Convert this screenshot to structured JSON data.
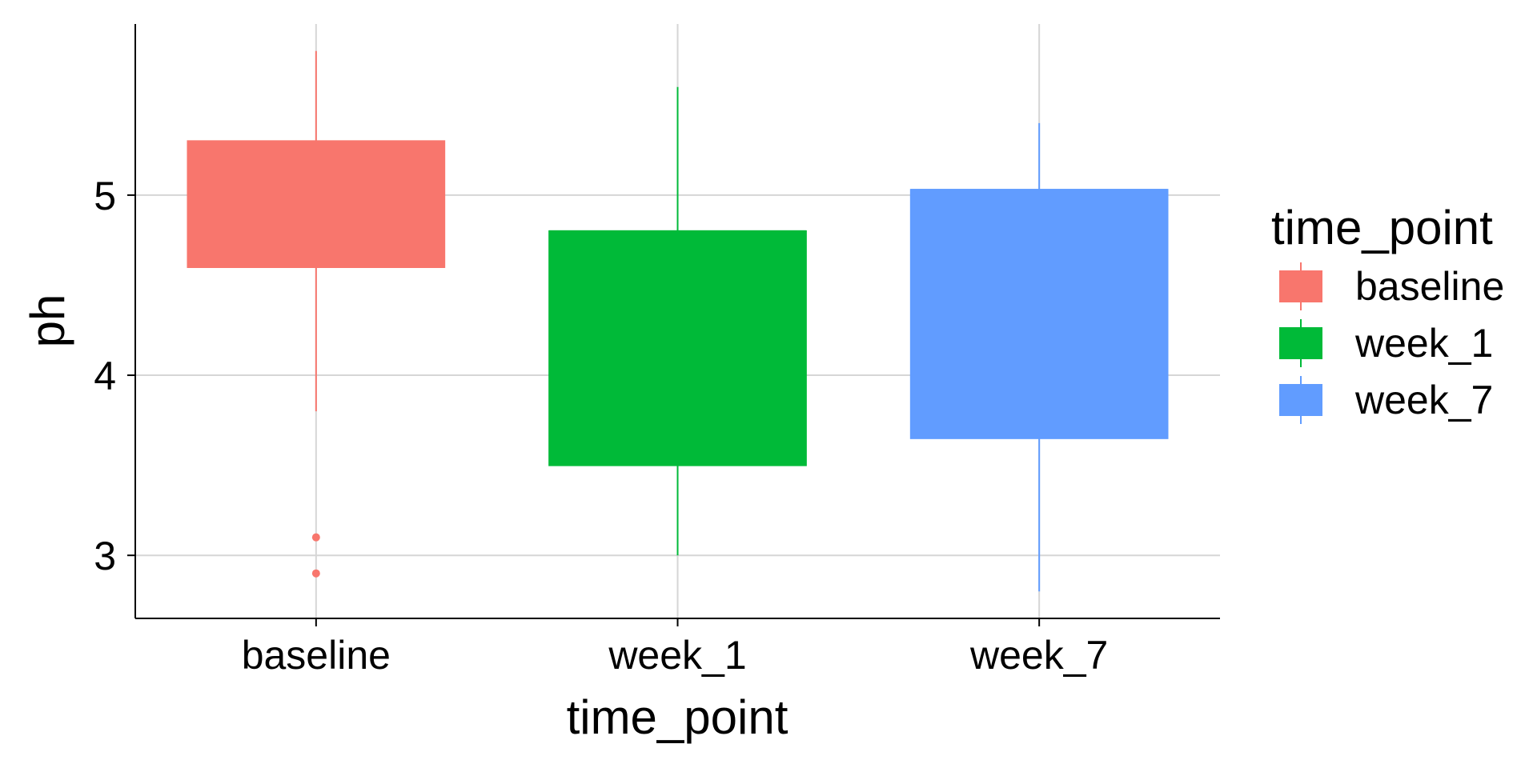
{
  "chart_data": {
    "type": "boxplot",
    "title": "",
    "xlabel": "time_point",
    "ylabel": "ph",
    "categories": [
      "baseline",
      "week_1",
      "week_7"
    ],
    "ylim": [
      2.65,
      5.95
    ],
    "y_ticks": [
      3,
      4,
      5
    ],
    "grid": true,
    "legend": {
      "title": "time_point",
      "placement": "right",
      "entries": [
        "baseline",
        "week_1",
        "week_7"
      ]
    },
    "boxes": [
      {
        "category": "baseline",
        "whisker_low": 3.8,
        "q1": 4.6,
        "median": 4.6,
        "q3": 5.3,
        "whisker_high": 5.8,
        "outliers": [
          3.1,
          2.9
        ],
        "color": "#F8766D"
      },
      {
        "category": "week_1",
        "whisker_low": 3.0,
        "q1": 3.5,
        "median": 4.8,
        "q3": 4.8,
        "whisker_high": 5.6,
        "outliers": [],
        "color": "#00BA38"
      },
      {
        "category": "week_7",
        "whisker_low": 2.8,
        "q1": 3.65,
        "median": 5.03,
        "q3": 5.03,
        "whisker_high": 5.4,
        "outliers": [],
        "color": "#619CFF"
      }
    ]
  }
}
